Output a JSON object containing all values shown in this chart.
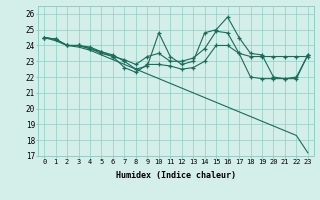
{
  "xlabel": "Humidex (Indice chaleur)",
  "xlim": [
    -0.5,
    23.5
  ],
  "ylim": [
    17,
    26.5
  ],
  "yticks": [
    17,
    18,
    19,
    20,
    21,
    22,
    23,
    24,
    25,
    26
  ],
  "xticks": [
    0,
    1,
    2,
    3,
    4,
    5,
    6,
    7,
    8,
    9,
    10,
    11,
    12,
    13,
    14,
    15,
    16,
    17,
    18,
    19,
    20,
    21,
    22,
    23
  ],
  "line_color": "#1a6b5a",
  "bg_color": "#d4eeea",
  "grid_color": "#8ecfc5",
  "line1_x": [
    0,
    1,
    2,
    3,
    4,
    5,
    6,
    7,
    8,
    9,
    10,
    11,
    12,
    13,
    14,
    15,
    16,
    17,
    18,
    19,
    20,
    21,
    22,
    23
  ],
  "line1_y": [
    24.5,
    24.4,
    24.0,
    24.0,
    23.9,
    23.6,
    23.3,
    22.6,
    22.3,
    22.8,
    22.8,
    22.7,
    22.5,
    22.6,
    23.0,
    24.0,
    24.0,
    23.5,
    22.0,
    21.9,
    21.9,
    21.9,
    21.9,
    23.4
  ],
  "line2_x": [
    0,
    1,
    2,
    3,
    4,
    5,
    6,
    7,
    8,
    9,
    10,
    11,
    12,
    13,
    14,
    15,
    16,
    17,
    18,
    19,
    20,
    21,
    22,
    23
  ],
  "line2_y": [
    24.5,
    24.4,
    24.0,
    24.0,
    23.8,
    23.6,
    23.4,
    23.0,
    22.5,
    22.7,
    24.8,
    23.3,
    22.8,
    23.0,
    24.8,
    25.0,
    25.8,
    24.5,
    23.5,
    23.4,
    22.0,
    21.9,
    22.0,
    23.4
  ],
  "line3_x": [
    0,
    1,
    2,
    3,
    4,
    5,
    6,
    7,
    8,
    9,
    10,
    11,
    12,
    13,
    14,
    15,
    16,
    17,
    18,
    19,
    20,
    21,
    22,
    23
  ],
  "line3_y": [
    24.5,
    24.4,
    24.0,
    24.0,
    23.8,
    23.5,
    23.3,
    23.1,
    22.8,
    23.3,
    23.5,
    23.0,
    23.0,
    23.2,
    23.8,
    24.9,
    24.8,
    23.5,
    23.3,
    23.3,
    23.3,
    23.3,
    23.3,
    23.3
  ],
  "line4_x": [
    0,
    1,
    2,
    3,
    4,
    5,
    6,
    7,
    8,
    9,
    10,
    11,
    12,
    13,
    14,
    15,
    16,
    17,
    18,
    19,
    20,
    21,
    22,
    23
  ],
  "line4_y": [
    24.5,
    24.3,
    24.0,
    23.9,
    23.7,
    23.4,
    23.1,
    22.8,
    22.5,
    22.2,
    21.9,
    21.6,
    21.3,
    21.0,
    20.7,
    20.4,
    20.1,
    19.8,
    19.5,
    19.2,
    18.9,
    18.6,
    18.3,
    17.2
  ]
}
